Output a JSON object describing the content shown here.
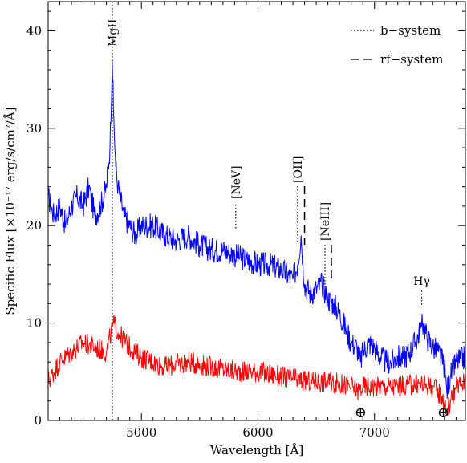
{
  "chart_data": {
    "type": "line",
    "xlabel": "Wavelength [Å]",
    "ylabel": "Specific Flux [×10⁻¹⁷ erg/s/cm²/Å]",
    "xlim": [
      4200,
      7780
    ],
    "ylim": [
      0,
      43
    ],
    "x_ticks": [
      5000,
      6000,
      7000
    ],
    "y_ticks": [
      0,
      10,
      20,
      30,
      40
    ],
    "x_tick_labels": [
      "5000",
      "6000",
      "7000"
    ],
    "y_tick_labels": [
      "0",
      "10",
      "20",
      "30",
      "40"
    ],
    "grid": false,
    "legend": {
      "placement": "top-right",
      "entries": [
        {
          "label": "b−system",
          "style": "dotted"
        },
        {
          "label": "rf−system",
          "style": "dashed"
        }
      ]
    },
    "series": [
      {
        "color": "#0000ff",
        "x": [
          4200,
          4250,
          4300,
          4350,
          4400,
          4450,
          4500,
          4550,
          4600,
          4650,
          4700,
          4730,
          4750,
          4760,
          4780,
          4800,
          4850,
          4900,
          4950,
          5000,
          5100,
          5200,
          5300,
          5400,
          5500,
          5600,
          5700,
          5800,
          5900,
          6000,
          6100,
          6200,
          6300,
          6340,
          6370,
          6400,
          6450,
          6500,
          6550,
          6600,
          6650,
          6700,
          6750,
          6800,
          6850,
          6880,
          6900,
          6950,
          7000,
          7050,
          7100,
          7150,
          7200,
          7250,
          7300,
          7350,
          7400,
          7420,
          7450,
          7500,
          7550,
          7600,
          7620,
          7650,
          7700,
          7780
        ],
        "values": [
          23,
          21,
          22,
          20,
          22,
          23,
          22,
          24,
          21,
          22,
          24,
          28,
          37,
          32,
          26,
          24,
          21,
          20,
          19,
          20,
          20,
          19,
          18.5,
          19,
          18,
          17.5,
          17.5,
          17,
          16.5,
          16,
          16,
          15.5,
          14.5,
          16,
          19,
          14,
          13,
          13.5,
          14,
          12.5,
          12,
          11,
          9.5,
          8,
          7.5,
          6,
          7,
          8,
          7.5,
          6.5,
          6,
          6,
          6.5,
          6.5,
          7,
          8,
          9.5,
          10,
          8.5,
          7.5,
          7,
          5.5,
          3,
          4.5,
          6,
          6.5
        ]
      },
      {
        "color": "#ff0000",
        "x": [
          4200,
          4300,
          4400,
          4500,
          4600,
          4700,
          4740,
          4760,
          4800,
          4900,
          5000,
          5200,
          5400,
          5600,
          5800,
          6000,
          6200,
          6400,
          6600,
          6800,
          6850,
          6900,
          7000,
          7200,
          7400,
          7500,
          7580,
          7620,
          7700,
          7780
        ],
        "values": [
          4,
          6,
          7,
          8,
          7.5,
          7,
          9,
          10,
          9,
          7.5,
          6.5,
          5.5,
          6,
          5.5,
          5,
          5,
          4.5,
          4,
          4,
          3.5,
          3,
          3.5,
          3.5,
          3.5,
          3.8,
          3.5,
          2.5,
          1,
          3.5,
          4
        ]
      }
    ],
    "b_system_lines": [
      {
        "label": "MgII",
        "x": 4750
      },
      {
        "label": "[NeV]",
        "x": 5810
      },
      {
        "label": "[OII]",
        "x": 6340
      },
      {
        "label": "[NeIII]",
        "x": 6575
      },
      {
        "label": "Hγ",
        "x": 7405
      }
    ],
    "rf_system_lines": [
      {
        "x": 6400
      },
      {
        "x": 6630
      }
    ],
    "telluric_markers": [
      {
        "symbol": "⊕",
        "x": 6880
      },
      {
        "symbol": "⊕",
        "x": 7590
      }
    ]
  }
}
